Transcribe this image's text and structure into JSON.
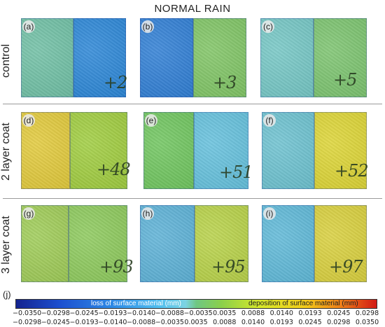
{
  "title": "NORMAL RAIN",
  "rows": [
    {
      "label": "control"
    },
    {
      "label": "2 layer coat"
    },
    {
      "label": "3 layer coat"
    }
  ],
  "panels": [
    {
      "id": "a",
      "label": "(a)",
      "number": "+2",
      "left": "#6fbfa4",
      "right": "#2b86d6"
    },
    {
      "id": "b",
      "label": "(b)",
      "number": "+3",
      "left": "#2f7ed4",
      "right": "#7fc464"
    },
    {
      "id": "c",
      "label": "(c)",
      "number": "+5",
      "left": "#74c6c4",
      "right": "#7bc36e"
    },
    {
      "id": "d",
      "label": "(d)",
      "number": "+48",
      "left": "#e1c93a",
      "right": "#9fcc3e"
    },
    {
      "id": "e",
      "label": "(e)",
      "number": "+51",
      "left": "#6fc55e",
      "right": "#64c0dc"
    },
    {
      "id": "f",
      "label": "(f)",
      "number": "+52",
      "left": "#6cc1cf",
      "right": "#dcd434"
    },
    {
      "id": "g",
      "label": "(g)",
      "number": "+93",
      "left": "#9ecb56",
      "right": "#8cc95b"
    },
    {
      "id": "h",
      "label": "(h)",
      "number": "+95",
      "left": "#5cb1d6",
      "right": "#b7d147"
    },
    {
      "id": "i",
      "label": "(i)",
      "number": "+97",
      "left": "#5eb8d7",
      "right": "#d8cf3c"
    }
  ],
  "colorbar": {
    "label": "(j)",
    "left_text": "loss of surface material (mm)",
    "right_text": "deposition of surface material (mm)",
    "upper_ticks": [
      "−0.0350",
      "−0.0298",
      "−0.0245",
      "−0.0193",
      "−0.0140",
      "−0.0088",
      "−0.0035",
      "0.0035",
      "0.0088",
      "0.0140",
      "0.0193",
      "0.0245",
      "0.0298"
    ],
    "lower_ticks": [
      "−0.0298",
      "−0.0245",
      "−0.0193",
      "−0.0140",
      "−0.0088",
      "−0.0035",
      "0.0035",
      "0.0088",
      "0.0140",
      "0.0193",
      "0.0245",
      "0.0298",
      "0.0350"
    ],
    "colors": [
      "#14238f",
      "#1d4fcf",
      "#2e8be6",
      "#52c0ee",
      "#6fc783",
      "#d8e82a",
      "#f2cc1b",
      "#ef7f18",
      "#d21a15"
    ]
  }
}
